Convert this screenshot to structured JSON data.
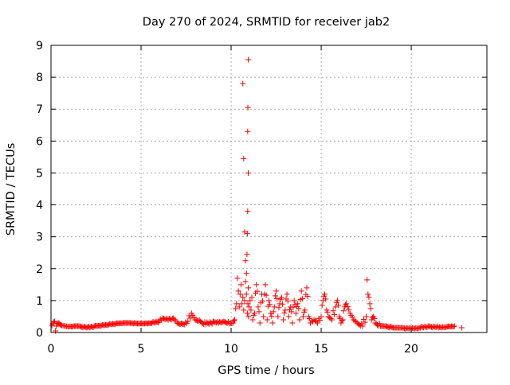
{
  "chart_data": {
    "type": "scatter",
    "title": "Day 270 of 2024, SRMTID for receiver jab2",
    "xlabel": "GPS time / hours",
    "ylabel": "SRMTID / TECUs",
    "xlim": [
      0,
      24.2
    ],
    "ylim": [
      0,
      9
    ],
    "xticks": [
      0,
      5,
      10,
      15,
      20
    ],
    "yticks": [
      0,
      1,
      2,
      3,
      4,
      5,
      6,
      7,
      8,
      9
    ],
    "grid": true,
    "marker": "+",
    "series": [
      {
        "name": "SRMTID",
        "color": "#ff0000",
        "x": [
          0.05,
          0.1,
          0.2,
          0.25,
          0.3,
          0.4,
          0.5,
          0.6,
          0.8,
          1.0,
          1.3,
          1.6,
          2.0,
          2.4,
          2.8,
          3.2,
          3.6,
          4.0,
          4.4,
          4.8,
          5.2,
          5.6,
          6.0,
          6.2,
          6.5,
          6.8,
          7.0,
          7.4,
          7.6,
          7.8,
          8.0,
          8.3,
          8.6,
          9.0,
          9.3,
          9.6,
          9.9,
          10.1,
          10.2,
          10.3,
          10.35,
          10.4,
          10.45,
          10.5,
          10.55,
          10.6,
          10.65,
          10.7,
          10.75,
          10.8,
          10.85,
          10.9,
          10.93,
          10.95,
          10.97,
          11.0,
          11.05,
          11.1,
          11.15,
          11.2,
          11.3,
          11.4,
          11.5,
          11.6,
          11.7,
          11.8,
          11.9,
          12.0,
          12.1,
          12.2,
          12.3,
          12.4,
          12.5,
          12.6,
          12.7,
          12.8,
          12.9,
          13.0,
          13.1,
          13.2,
          13.3,
          13.4,
          13.5,
          13.6,
          13.7,
          13.8,
          13.9,
          14.0,
          14.1,
          14.2,
          14.3,
          14.4,
          14.6,
          14.8,
          15.0,
          15.1,
          15.2,
          15.3,
          15.4,
          15.6,
          15.8,
          15.9,
          16.0,
          16.1,
          16.2,
          16.3,
          16.4,
          16.6,
          16.8,
          17.0,
          17.3,
          17.5,
          17.55,
          17.6,
          17.7,
          17.8,
          17.9,
          18.0,
          18.3,
          18.6,
          19.0,
          19.5,
          20.0,
          20.5,
          21.0,
          21.5,
          22.0,
          22.4,
          22.8,
          10.85,
          10.88,
          10.9,
          10.92,
          10.95,
          10.75,
          10.8,
          10.7,
          10.65
        ],
        "y": [
          0.22,
          0.28,
          0.35,
          0.05,
          0.2,
          0.3,
          0.25,
          0.22,
          0.2,
          0.18,
          0.2,
          0.2,
          0.15,
          0.2,
          0.22,
          0.25,
          0.28,
          0.3,
          0.3,
          0.28,
          0.28,
          0.3,
          0.35,
          0.45,
          0.4,
          0.45,
          0.3,
          0.25,
          0.35,
          0.6,
          0.4,
          0.35,
          0.25,
          0.35,
          0.3,
          0.35,
          0.28,
          0.3,
          0.4,
          0.9,
          1.7,
          1.3,
          0.8,
          1.2,
          1.5,
          0.9,
          1.1,
          0.7,
          1.0,
          1.6,
          1.2,
          0.6,
          0.9,
          1.4,
          0.5,
          0.8,
          1.0,
          0.7,
          1.1,
          0.4,
          0.6,
          1.5,
          0.8,
          0.3,
          1.2,
          0.5,
          1.5,
          0.4,
          1.0,
          0.6,
          0.3,
          0.8,
          1.3,
          0.5,
          0.9,
          1.1,
          0.4,
          0.7,
          1.2,
          0.5,
          0.8,
          0.3,
          1.0,
          0.6,
          0.9,
          0.4,
          1.3,
          0.5,
          0.7,
          1.4,
          0.5,
          0.3,
          0.4,
          0.3,
          0.5,
          1.0,
          1.2,
          0.7,
          0.5,
          0.4,
          0.8,
          1.0,
          0.5,
          0.3,
          0.4,
          0.8,
          0.9,
          0.6,
          0.4,
          0.3,
          0.2,
          0.5,
          1.65,
          1.2,
          0.9,
          0.4,
          0.5,
          0.3,
          0.2,
          0.2,
          0.15,
          0.15,
          0.12,
          0.15,
          0.2,
          0.15,
          0.18,
          0.2,
          0.15,
          1.85,
          2.45,
          3.1,
          3.8,
          5.0,
          3.15,
          2.25,
          5.45,
          7.8
        ],
        "extra_peaks": [
          {
            "x": 10.95,
            "y": 8.55
          },
          {
            "x": 10.93,
            "y": 7.05
          },
          {
            "x": 10.92,
            "y": 6.3
          }
        ]
      }
    ]
  }
}
